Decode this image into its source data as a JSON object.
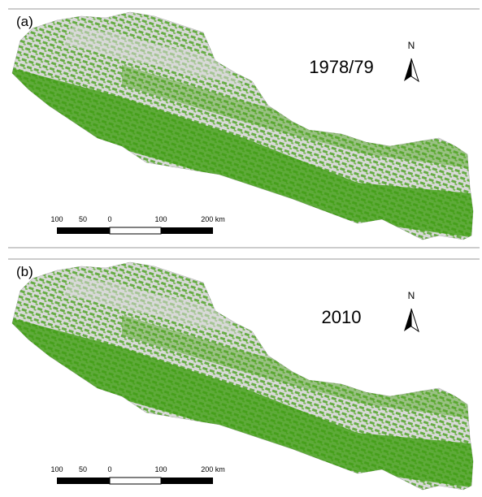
{
  "panels": [
    {
      "label": "(a)",
      "year": "1978/79",
      "north": "N",
      "scale_labels": [
        "100",
        "50",
        "0",
        "100",
        "200 km"
      ]
    },
    {
      "label": "(b)",
      "year": "2010",
      "north": "N",
      "scale_labels": [
        "100",
        "50",
        "0",
        "100",
        "200 km"
      ]
    }
  ]
}
